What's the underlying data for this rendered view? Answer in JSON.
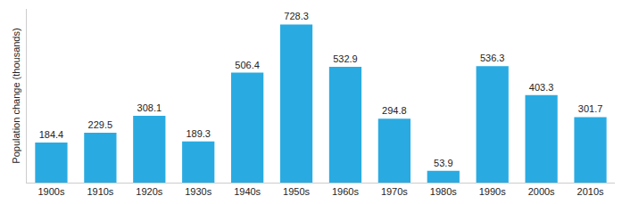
{
  "chart_data": {
    "type": "bar",
    "y_label": "Population change (thousands)",
    "categories": [
      "1900s",
      "1910s",
      "1920s",
      "1930s",
      "1940s",
      "1950s",
      "1960s",
      "1970s",
      "1980s",
      "1990s",
      "2000s",
      "2010s"
    ],
    "values": [
      184.4,
      229.5,
      308.1,
      189.3,
      506.4,
      728.3,
      532.9,
      294.8,
      53.9,
      536.3,
      403.3,
      301.7
    ],
    "color": "#29abe2",
    "ylim": [
      0,
      800
    ],
    "data_labels": true,
    "tick_labels": "x",
    "grid": false
  }
}
